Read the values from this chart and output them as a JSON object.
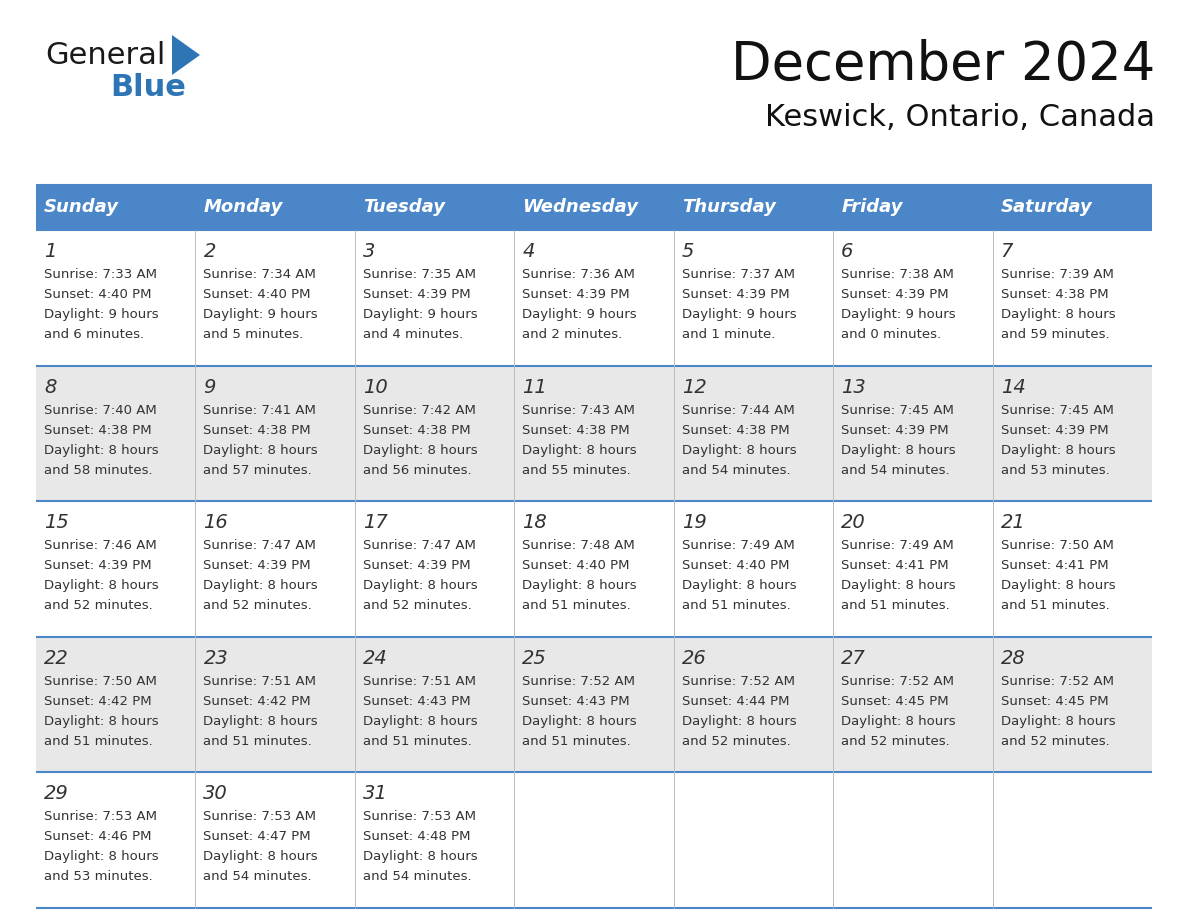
{
  "title": "December 2024",
  "subtitle": "Keswick, Ontario, Canada",
  "header_color": "#4a86c8",
  "header_text_color": "#ffffff",
  "cell_bg_white": "#ffffff",
  "cell_bg_gray": "#e8e8e8",
  "border_color": "#4a86c8",
  "grid_color": "#aaaaaa",
  "text_color": "#333333",
  "logo_black": "#1a1a1a",
  "logo_blue": "#2e75b6",
  "day_names": [
    "Sunday",
    "Monday",
    "Tuesday",
    "Wednesday",
    "Thursday",
    "Friday",
    "Saturday"
  ],
  "days": [
    {
      "day": 1,
      "col": 0,
      "row": 0,
      "sunrise": "7:33 AM",
      "sunset": "4:40 PM",
      "daylight_line1": "Daylight: 9 hours",
      "daylight_line2": "and 6 minutes."
    },
    {
      "day": 2,
      "col": 1,
      "row": 0,
      "sunrise": "7:34 AM",
      "sunset": "4:40 PM",
      "daylight_line1": "Daylight: 9 hours",
      "daylight_line2": "and 5 minutes."
    },
    {
      "day": 3,
      "col": 2,
      "row": 0,
      "sunrise": "7:35 AM",
      "sunset": "4:39 PM",
      "daylight_line1": "Daylight: 9 hours",
      "daylight_line2": "and 4 minutes."
    },
    {
      "day": 4,
      "col": 3,
      "row": 0,
      "sunrise": "7:36 AM",
      "sunset": "4:39 PM",
      "daylight_line1": "Daylight: 9 hours",
      "daylight_line2": "and 2 minutes."
    },
    {
      "day": 5,
      "col": 4,
      "row": 0,
      "sunrise": "7:37 AM",
      "sunset": "4:39 PM",
      "daylight_line1": "Daylight: 9 hours",
      "daylight_line2": "and 1 minute."
    },
    {
      "day": 6,
      "col": 5,
      "row": 0,
      "sunrise": "7:38 AM",
      "sunset": "4:39 PM",
      "daylight_line1": "Daylight: 9 hours",
      "daylight_line2": "and 0 minutes."
    },
    {
      "day": 7,
      "col": 6,
      "row": 0,
      "sunrise": "7:39 AM",
      "sunset": "4:38 PM",
      "daylight_line1": "Daylight: 8 hours",
      "daylight_line2": "and 59 minutes."
    },
    {
      "day": 8,
      "col": 0,
      "row": 1,
      "sunrise": "7:40 AM",
      "sunset": "4:38 PM",
      "daylight_line1": "Daylight: 8 hours",
      "daylight_line2": "and 58 minutes."
    },
    {
      "day": 9,
      "col": 1,
      "row": 1,
      "sunrise": "7:41 AM",
      "sunset": "4:38 PM",
      "daylight_line1": "Daylight: 8 hours",
      "daylight_line2": "and 57 minutes."
    },
    {
      "day": 10,
      "col": 2,
      "row": 1,
      "sunrise": "7:42 AM",
      "sunset": "4:38 PM",
      "daylight_line1": "Daylight: 8 hours",
      "daylight_line2": "and 56 minutes."
    },
    {
      "day": 11,
      "col": 3,
      "row": 1,
      "sunrise": "7:43 AM",
      "sunset": "4:38 PM",
      "daylight_line1": "Daylight: 8 hours",
      "daylight_line2": "and 55 minutes."
    },
    {
      "day": 12,
      "col": 4,
      "row": 1,
      "sunrise": "7:44 AM",
      "sunset": "4:38 PM",
      "daylight_line1": "Daylight: 8 hours",
      "daylight_line2": "and 54 minutes."
    },
    {
      "day": 13,
      "col": 5,
      "row": 1,
      "sunrise": "7:45 AM",
      "sunset": "4:39 PM",
      "daylight_line1": "Daylight: 8 hours",
      "daylight_line2": "and 54 minutes."
    },
    {
      "day": 14,
      "col": 6,
      "row": 1,
      "sunrise": "7:45 AM",
      "sunset": "4:39 PM",
      "daylight_line1": "Daylight: 8 hours",
      "daylight_line2": "and 53 minutes."
    },
    {
      "day": 15,
      "col": 0,
      "row": 2,
      "sunrise": "7:46 AM",
      "sunset": "4:39 PM",
      "daylight_line1": "Daylight: 8 hours",
      "daylight_line2": "and 52 minutes."
    },
    {
      "day": 16,
      "col": 1,
      "row": 2,
      "sunrise": "7:47 AM",
      "sunset": "4:39 PM",
      "daylight_line1": "Daylight: 8 hours",
      "daylight_line2": "and 52 minutes."
    },
    {
      "day": 17,
      "col": 2,
      "row": 2,
      "sunrise": "7:47 AM",
      "sunset": "4:39 PM",
      "daylight_line1": "Daylight: 8 hours",
      "daylight_line2": "and 52 minutes."
    },
    {
      "day": 18,
      "col": 3,
      "row": 2,
      "sunrise": "7:48 AM",
      "sunset": "4:40 PM",
      "daylight_line1": "Daylight: 8 hours",
      "daylight_line2": "and 51 minutes."
    },
    {
      "day": 19,
      "col": 4,
      "row": 2,
      "sunrise": "7:49 AM",
      "sunset": "4:40 PM",
      "daylight_line1": "Daylight: 8 hours",
      "daylight_line2": "and 51 minutes."
    },
    {
      "day": 20,
      "col": 5,
      "row": 2,
      "sunrise": "7:49 AM",
      "sunset": "4:41 PM",
      "daylight_line1": "Daylight: 8 hours",
      "daylight_line2": "and 51 minutes."
    },
    {
      "day": 21,
      "col": 6,
      "row": 2,
      "sunrise": "7:50 AM",
      "sunset": "4:41 PM",
      "daylight_line1": "Daylight: 8 hours",
      "daylight_line2": "and 51 minutes."
    },
    {
      "day": 22,
      "col": 0,
      "row": 3,
      "sunrise": "7:50 AM",
      "sunset": "4:42 PM",
      "daylight_line1": "Daylight: 8 hours",
      "daylight_line2": "and 51 minutes."
    },
    {
      "day": 23,
      "col": 1,
      "row": 3,
      "sunrise": "7:51 AM",
      "sunset": "4:42 PM",
      "daylight_line1": "Daylight: 8 hours",
      "daylight_line2": "and 51 minutes."
    },
    {
      "day": 24,
      "col": 2,
      "row": 3,
      "sunrise": "7:51 AM",
      "sunset": "4:43 PM",
      "daylight_line1": "Daylight: 8 hours",
      "daylight_line2": "and 51 minutes."
    },
    {
      "day": 25,
      "col": 3,
      "row": 3,
      "sunrise": "7:52 AM",
      "sunset": "4:43 PM",
      "daylight_line1": "Daylight: 8 hours",
      "daylight_line2": "and 51 minutes."
    },
    {
      "day": 26,
      "col": 4,
      "row": 3,
      "sunrise": "7:52 AM",
      "sunset": "4:44 PM",
      "daylight_line1": "Daylight: 8 hours",
      "daylight_line2": "and 52 minutes."
    },
    {
      "day": 27,
      "col": 5,
      "row": 3,
      "sunrise": "7:52 AM",
      "sunset": "4:45 PM",
      "daylight_line1": "Daylight: 8 hours",
      "daylight_line2": "and 52 minutes."
    },
    {
      "day": 28,
      "col": 6,
      "row": 3,
      "sunrise": "7:52 AM",
      "sunset": "4:45 PM",
      "daylight_line1": "Daylight: 8 hours",
      "daylight_line2": "and 52 minutes."
    },
    {
      "day": 29,
      "col": 0,
      "row": 4,
      "sunrise": "7:53 AM",
      "sunset": "4:46 PM",
      "daylight_line1": "Daylight: 8 hours",
      "daylight_line2": "and 53 minutes."
    },
    {
      "day": 30,
      "col": 1,
      "row": 4,
      "sunrise": "7:53 AM",
      "sunset": "4:47 PM",
      "daylight_line1": "Daylight: 8 hours",
      "daylight_line2": "and 54 minutes."
    },
    {
      "day": 31,
      "col": 2,
      "row": 4,
      "sunrise": "7:53 AM",
      "sunset": "4:48 PM",
      "daylight_line1": "Daylight: 8 hours",
      "daylight_line2": "and 54 minutes."
    }
  ],
  "num_rows": 5,
  "num_cols": 7,
  "title_fontsize": 38,
  "subtitle_fontsize": 22,
  "day_name_fontsize": 13,
  "day_num_fontsize": 14,
  "cell_text_fontsize": 9.5
}
